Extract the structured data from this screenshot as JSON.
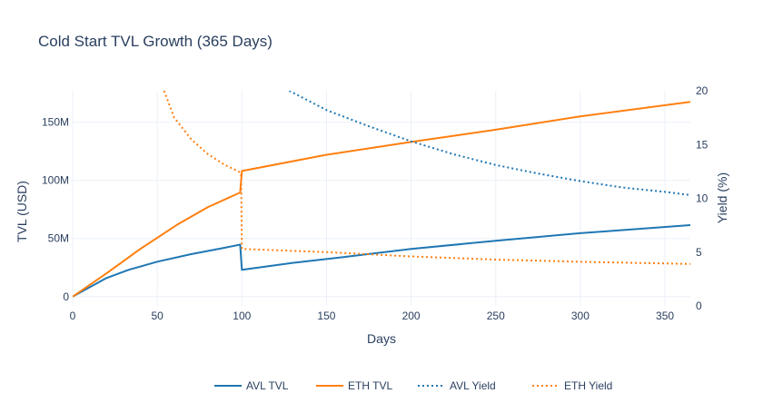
{
  "chart_data": {
    "type": "line",
    "title": "Cold Start TVL Growth (365 Days)",
    "xlabel": "Days",
    "ylabel": "TVL (USD)",
    "y2label": "Yield (%)",
    "xlim": [
      0,
      365
    ],
    "ylim": [
      -8000000,
      177000000
    ],
    "y2lim": [
      0,
      20
    ],
    "x_ticks": [
      0,
      50,
      100,
      150,
      200,
      250,
      300,
      350
    ],
    "y_ticks": [
      {
        "value": 0,
        "label": "0"
      },
      {
        "value": 50000000,
        "label": "50M"
      },
      {
        "value": 100000000,
        "label": "100M"
      },
      {
        "value": 150000000,
        "label": "150M"
      }
    ],
    "y2_ticks": [
      0,
      5,
      10,
      15,
      20
    ],
    "grid": true,
    "legend_position": "bottom",
    "series": [
      {
        "name": "AVL TVL",
        "axis": "y",
        "color": "#1f77b4",
        "dash": "solid",
        "points": [
          [
            0,
            0
          ],
          [
            10,
            8000000
          ],
          [
            20,
            16000000
          ],
          [
            33,
            23000000
          ],
          [
            50,
            30000000
          ],
          [
            70,
            36500000
          ],
          [
            90,
            42000000
          ],
          [
            99,
            44700000
          ],
          [
            100,
            23000000
          ],
          [
            130,
            29000000
          ],
          [
            160,
            34000000
          ],
          [
            200,
            41000000
          ],
          [
            250,
            48000000
          ],
          [
            300,
            54500000
          ],
          [
            365,
            61500000
          ]
        ]
      },
      {
        "name": "ETH TVL",
        "axis": "y",
        "color": "#ff7f0e",
        "dash": "solid",
        "points": [
          [
            0,
            0
          ],
          [
            20,
            20000000
          ],
          [
            40,
            41000000
          ],
          [
            62,
            62000000
          ],
          [
            80,
            77000000
          ],
          [
            99,
            89500000
          ],
          [
            100,
            108000000
          ],
          [
            150,
            122000000
          ],
          [
            200,
            133000000
          ],
          [
            250,
            143500000
          ],
          [
            300,
            155000000
          ],
          [
            365,
            167500000
          ]
        ]
      },
      {
        "name": "AVL Yield",
        "axis": "y2",
        "color": "#1f77b4",
        "dash": "dot",
        "points": [
          [
            128,
            20
          ],
          [
            150,
            18.2
          ],
          [
            175,
            16.7
          ],
          [
            200,
            15.3
          ],
          [
            225,
            14.1
          ],
          [
            250,
            13.1
          ],
          [
            275,
            12.3
          ],
          [
            300,
            11.6
          ],
          [
            325,
            11.0
          ],
          [
            350,
            10.6
          ],
          [
            365,
            10.3
          ]
        ]
      },
      {
        "name": "ETH Yield",
        "axis": "y2",
        "color": "#ff7f0e",
        "dash": "dot",
        "points": [
          [
            54,
            20
          ],
          [
            60,
            17.5
          ],
          [
            70,
            15.5
          ],
          [
            80,
            14.1
          ],
          [
            90,
            13.1
          ],
          [
            98,
            12.5
          ],
          [
            99.5,
            12.3
          ],
          [
            100,
            5.3
          ],
          [
            150,
            5.0
          ],
          [
            200,
            4.6
          ],
          [
            250,
            4.3
          ],
          [
            300,
            4.1
          ],
          [
            365,
            3.9
          ]
        ]
      }
    ]
  }
}
